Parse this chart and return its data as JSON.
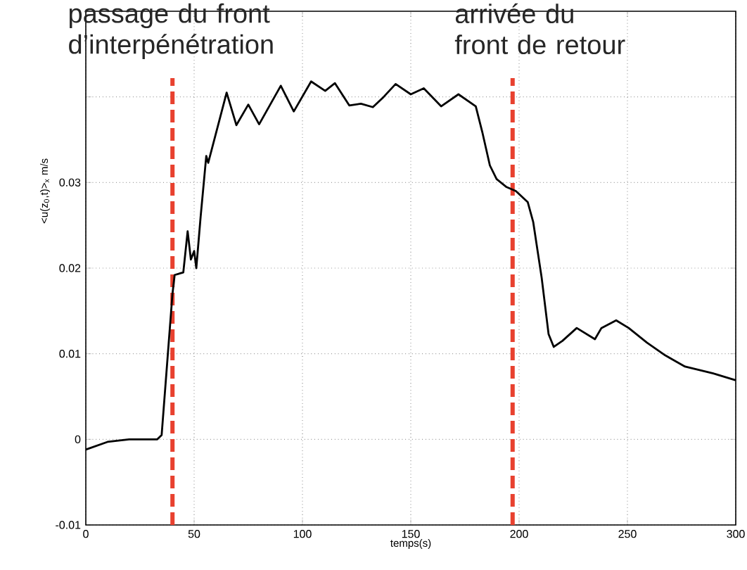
{
  "chart_data": {
    "type": "line",
    "xlabel": "temps(s)",
    "ylabel": "<u(z$_{0}$,t)>$_{x}$ m/s",
    "xlim": [
      0,
      300
    ],
    "ylim": [
      -0.01,
      0.05
    ],
    "xticks": [
      0,
      50,
      100,
      150,
      200,
      250,
      300
    ],
    "yticks": [
      -0.01,
      0,
      0.01,
      0.02,
      0.03,
      {
        "value": 0.04,
        "label": null
      }
    ],
    "grid": true,
    "line_style": "solid",
    "marker": "none",
    "series": [
      {
        "color": "#000000",
        "x": [
          0,
          10,
          20,
          33,
          35,
          40,
          41,
          45,
          47,
          48.5,
          50,
          51,
          53,
          55.6,
          56.5,
          65,
          69.5,
          75,
          80,
          90,
          96,
          104,
          110.5,
          115,
          121.6,
          127,
          132.5,
          137.5,
          143,
          150,
          156,
          164,
          172,
          180,
          183,
          186.5,
          189.6,
          194,
          198.5,
          204,
          206.5,
          210.4,
          213.6,
          216,
          220,
          226.6,
          235,
          238,
          244.8,
          250.6,
          259,
          267.5,
          276.6,
          289.6,
          300
        ],
        "values": [
          -0.0012,
          -0.0003,
          0,
          0,
          0.0005,
          0.017,
          0.0192,
          0.0195,
          0.0243,
          0.021,
          0.022,
          0.02,
          0.026,
          0.0331,
          0.0323,
          0.0405,
          0.0367,
          0.0391,
          0.0368,
          0.0413,
          0.0383,
          0.0418,
          0.0407,
          0.0416,
          0.039,
          0.0392,
          0.0388,
          0.04,
          0.0415,
          0.0403,
          0.041,
          0.0389,
          0.0403,
          0.0389,
          0.0359,
          0.032,
          0.0304,
          0.0295,
          0.029,
          0.0277,
          0.0254,
          0.0189,
          0.0123,
          0.0108,
          0.0115,
          0.013,
          0.0117,
          0.013,
          0.0139,
          0.013,
          0.0113,
          0.0098,
          0.0085,
          0.0077,
          0.0069
        ]
      }
    ],
    "ref_lines": [
      {
        "axis": "x",
        "value": 40,
        "color": "#e8412f",
        "line_style": "dashed"
      },
      {
        "axis": "x",
        "value": 197,
        "color": "#e8412f",
        "line_style": "dashed"
      }
    ],
    "annotations": [
      "passage du front d’interpénétration",
      "arrivée du front de retour"
    ]
  }
}
